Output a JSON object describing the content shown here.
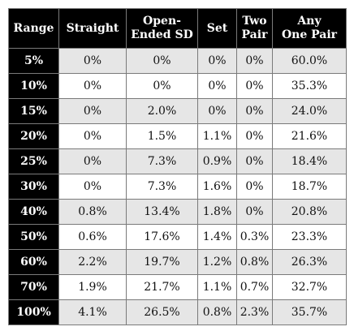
{
  "table": {
    "headers": [
      "Range",
      "Straight",
      "Open-\nEnded SD",
      "Set",
      "Two\nPair",
      "Any\nOne Pair"
    ],
    "rows": [
      {
        "range": "5%",
        "straight": "0%",
        "open_ended_sd": "0%",
        "set": "0%",
        "two_pair": "0%",
        "any_one_pair": "60.0%"
      },
      {
        "range": "10%",
        "straight": "0%",
        "open_ended_sd": "0%",
        "set": "0%",
        "two_pair": "0%",
        "any_one_pair": "35.3%"
      },
      {
        "range": "15%",
        "straight": "0%",
        "open_ended_sd": "2.0%",
        "set": "0%",
        "two_pair": "0%",
        "any_one_pair": "24.0%"
      },
      {
        "range": "20%",
        "straight": "0%",
        "open_ended_sd": "1.5%",
        "set": "1.1%",
        "two_pair": "0%",
        "any_one_pair": "21.6%"
      },
      {
        "range": "25%",
        "straight": "0%",
        "open_ended_sd": "7.3%",
        "set": "0.9%",
        "two_pair": "0%",
        "any_one_pair": "18.4%"
      },
      {
        "range": "30%",
        "straight": "0%",
        "open_ended_sd": "7.3%",
        "set": "1.6%",
        "two_pair": "0%",
        "any_one_pair": "18.7%"
      },
      {
        "range": "40%",
        "straight": "0.8%",
        "open_ended_sd": "13.4%",
        "set": "1.8%",
        "two_pair": "0%",
        "any_one_pair": "20.8%"
      },
      {
        "range": "50%",
        "straight": "0.6%",
        "open_ended_sd": "17.6%",
        "set": "1.4%",
        "two_pair": "0.3%",
        "any_one_pair": "23.3%"
      },
      {
        "range": "60%",
        "straight": "2.2%",
        "open_ended_sd": "19.7%",
        "set": "1.2%",
        "two_pair": "0.8%",
        "any_one_pair": "26.3%"
      },
      {
        "range": "70%",
        "straight": "1.9%",
        "open_ended_sd": "21.7%",
        "set": "1.1%",
        "two_pair": "0.7%",
        "any_one_pair": "32.7%"
      },
      {
        "range": "100%",
        "straight": "4.1%",
        "open_ended_sd": "26.5%",
        "set": "0.8%",
        "two_pair": "2.3%",
        "any_one_pair": "35.7%"
      }
    ]
  },
  "colors": {
    "header_bg": "#000000",
    "header_text": "#ffffff",
    "row_shade": "#e6e6e6",
    "row_plain": "#ffffff",
    "border": "#7a7a7a"
  }
}
